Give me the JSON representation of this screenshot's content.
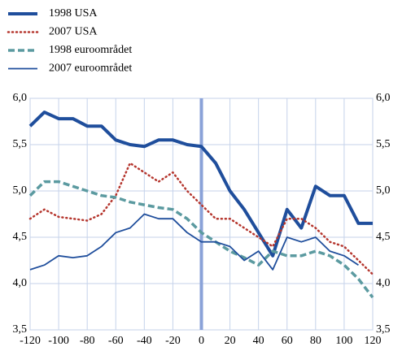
{
  "chart_data": {
    "type": "line",
    "x": [
      -120,
      -110,
      -100,
      -90,
      -80,
      -70,
      -60,
      -50,
      -40,
      -30,
      -20,
      -10,
      0,
      10,
      20,
      30,
      40,
      50,
      60,
      70,
      80,
      90,
      100,
      110,
      120
    ],
    "series": [
      {
        "name": "1998 USA",
        "color": "#1f4e9c",
        "style": "thick",
        "values": [
          5.7,
          5.85,
          5.78,
          5.78,
          5.7,
          5.7,
          5.55,
          5.5,
          5.48,
          5.55,
          5.55,
          5.5,
          5.48,
          5.3,
          5.0,
          4.8,
          4.55,
          4.3,
          4.8,
          4.6,
          5.05,
          4.95,
          4.95,
          4.65,
          4.65
        ]
      },
      {
        "name": "2007 USA",
        "color": "#b5362e",
        "style": "dotted",
        "values": [
          4.7,
          4.8,
          4.72,
          4.7,
          4.68,
          4.75,
          4.95,
          5.3,
          5.2,
          5.1,
          5.2,
          5.0,
          4.85,
          4.7,
          4.7,
          4.6,
          4.5,
          4.4,
          4.7,
          4.7,
          4.6,
          4.45,
          4.4,
          4.25,
          4.1
        ]
      },
      {
        "name": "1998 euroområdet",
        "color": "#5b9aa0",
        "style": "dashed",
        "values": [
          4.95,
          5.1,
          5.1,
          5.05,
          5.0,
          4.95,
          4.93,
          4.88,
          4.85,
          4.82,
          4.8,
          4.7,
          4.55,
          4.45,
          4.35,
          4.28,
          4.2,
          4.35,
          4.3,
          4.3,
          4.35,
          4.3,
          4.2,
          4.05,
          3.85
        ]
      },
      {
        "name": "2007 euroområdet",
        "color": "#1f4e9c",
        "style": "thin",
        "values": [
          4.15,
          4.2,
          4.3,
          4.28,
          4.3,
          4.4,
          4.55,
          4.6,
          4.75,
          4.7,
          4.7,
          4.55,
          4.45,
          4.45,
          4.4,
          4.25,
          4.35,
          4.15,
          4.5,
          4.45,
          4.5,
          4.35,
          4.3,
          4.2,
          null
        ]
      }
    ],
    "xlim": [
      -120,
      120
    ],
    "xticks": [
      -120,
      -100,
      -80,
      -60,
      -40,
      -20,
      0,
      20,
      40,
      60,
      80,
      100,
      120
    ],
    "ylim": [
      3.5,
      6.0
    ],
    "yticks": [
      {
        "value": 3.5,
        "label": "3,5"
      },
      {
        "value": 4.0,
        "label": "4,0"
      },
      {
        "value": 4.5,
        "label": "4,5"
      },
      {
        "value": 5.0,
        "label": "5,0"
      },
      {
        "value": 5.5,
        "label": "5,5"
      },
      {
        "value": 6.0,
        "label": "6,0"
      }
    ],
    "y2lim": [
      3.5,
      6.0
    ],
    "y2ticks": [
      {
        "value": 3.5,
        "label": "3,5"
      },
      {
        "value": 4.0,
        "label": "4,0"
      },
      {
        "value": 4.5,
        "label": "4,5"
      },
      {
        "value": 5.0,
        "label": "5,0"
      },
      {
        "value": 5.5,
        "label": "5,5"
      },
      {
        "value": 6.0,
        "label": "6,0"
      }
    ],
    "grid": true,
    "vline": 0,
    "legend": "top-left"
  }
}
